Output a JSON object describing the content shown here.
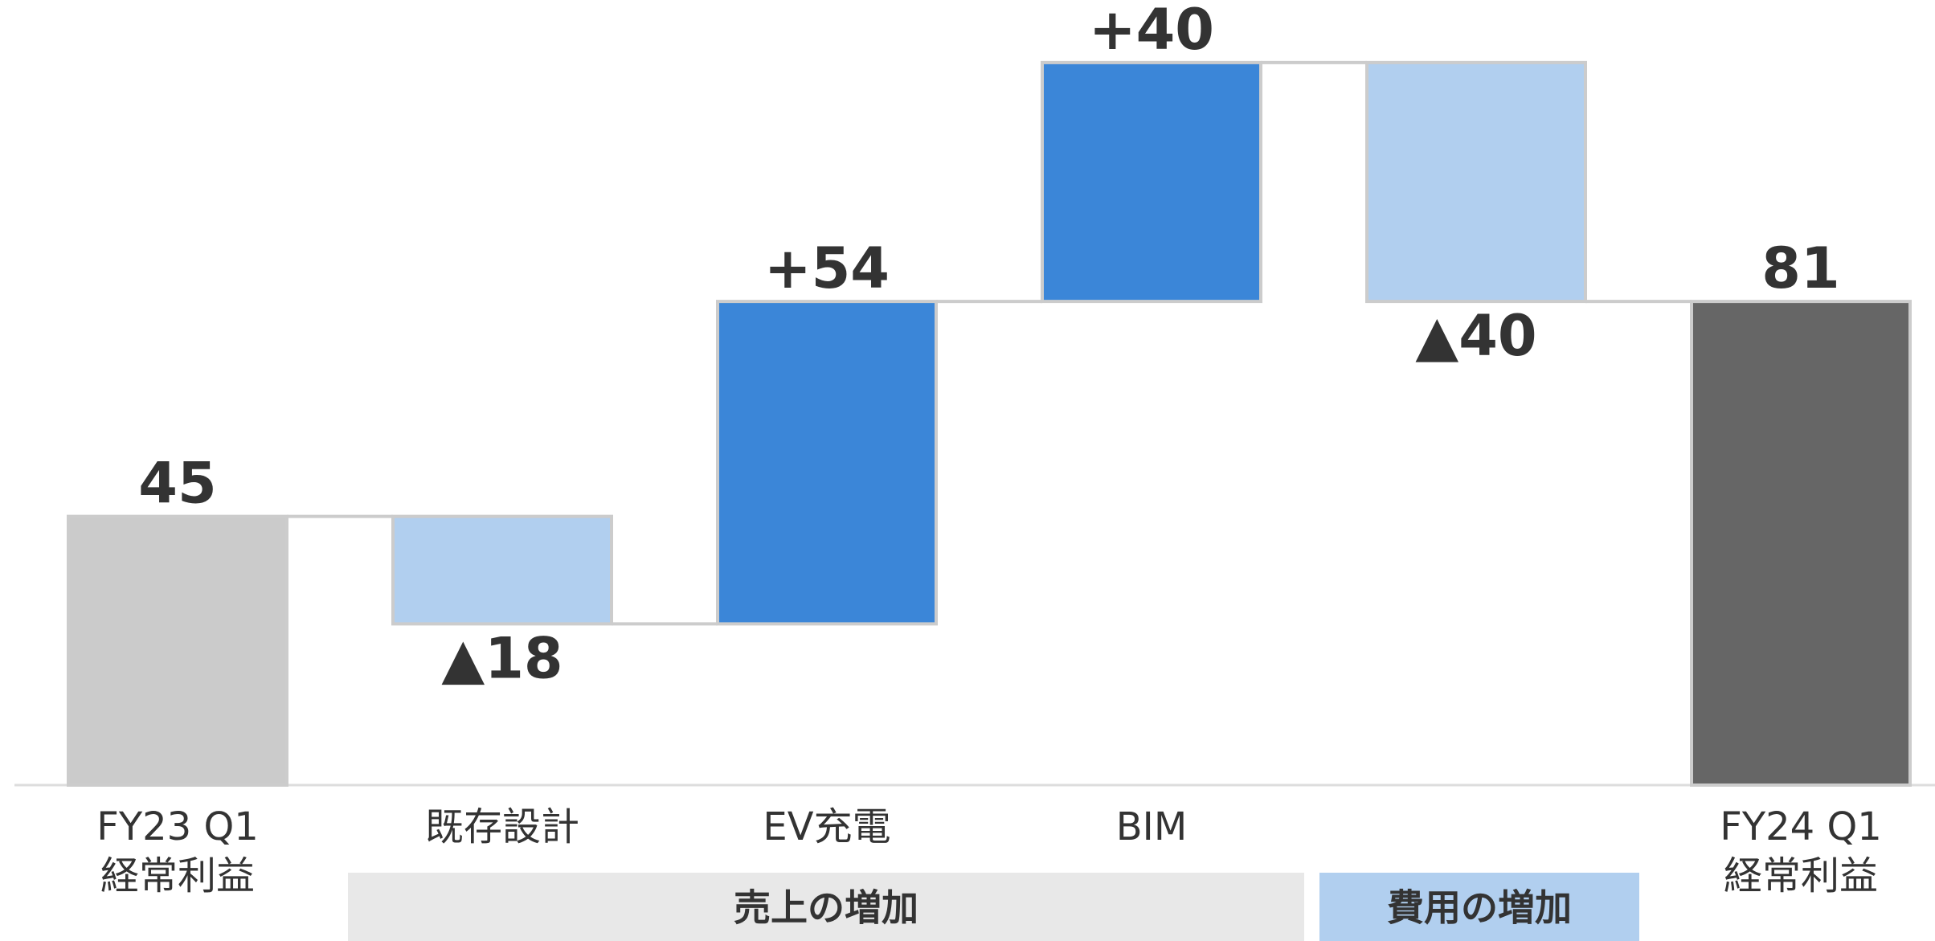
{
  "chart_data": {
    "type": "waterfall",
    "categories": [
      "FY23 Q1\n経常利益",
      "既存設計",
      "EV充電",
      "BIM",
      null,
      "FY24 Q1\n経常利益"
    ],
    "values": [
      45,
      -18,
      54,
      40,
      -40,
      81
    ],
    "value_labels": [
      "45",
      "▲18",
      "+54",
      "+40",
      "▲40",
      "81"
    ],
    "colors": [
      "#cbcbcb",
      "#b1cfef",
      "#3b86d8",
      "#3b86d8",
      "#b1cfef",
      "#666666"
    ],
    "ylim": [
      0,
      130
    ],
    "groups": [
      {
        "label": "売上の増加",
        "color": "#e8e8e8"
      },
      {
        "label": "費用の増加",
        "color": "#b1cfef"
      }
    ]
  }
}
